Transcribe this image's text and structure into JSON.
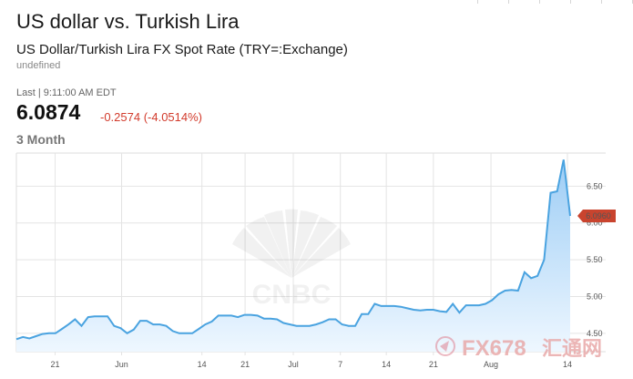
{
  "header": {
    "title": "US dollar vs. Turkish Lira",
    "subtitle": "US Dollar/Turkish Lira FX Spot Rate (TRY=:Exchange)",
    "subtitle_note": "undefined",
    "last_label": "Last | 9:11:00 AM EDT",
    "price": "6.0874",
    "change": "-0.2574 (-4.0514%)",
    "range": "3 Month"
  },
  "watermarks": {
    "brand": "CNBC",
    "fx_text": "FX678",
    "fx_cn": "汇通网"
  },
  "colors": {
    "line": "#4aa3e0",
    "fill_top": "#9dcdf5",
    "fill_bottom": "#eef7ff",
    "change_negative": "#d23b2c",
    "badge": "#c9442e",
    "grid": "#e4e4e4"
  },
  "chart_data": {
    "type": "area",
    "title": "",
    "xlabel": "",
    "ylabel": "",
    "ylim": [
      4.25,
      6.95
    ],
    "y_ticks": [
      "6.50",
      "6.00",
      "5.50",
      "5.00",
      "4.50"
    ],
    "y_tick_values": [
      6.5,
      6.0,
      5.5,
      5.0,
      4.5
    ],
    "x_ticks": [
      "21",
      "Jun",
      "14",
      "21",
      "Jul",
      "7",
      "14",
      "21",
      "Aug",
      "14"
    ],
    "current_label": "6.0960",
    "current_value": 6.096,
    "grid": true,
    "series": [
      {
        "values": [
          4.42,
          4.45,
          4.43,
          4.46,
          4.49,
          4.5,
          4.5,
          4.56,
          4.62,
          4.69,
          4.6,
          4.72,
          4.73,
          4.73,
          4.73,
          4.6,
          4.57,
          4.5,
          4.55,
          4.67,
          4.67,
          4.62,
          4.62,
          4.6,
          4.53,
          4.5,
          4.5,
          4.5,
          4.56,
          4.62,
          4.66,
          4.74,
          4.74,
          4.74,
          4.72,
          4.75,
          4.75,
          4.74,
          4.7,
          4.7,
          4.69,
          4.64,
          4.62,
          4.6,
          4.6,
          4.6,
          4.62,
          4.65,
          4.69,
          4.69,
          4.62,
          4.6,
          4.6,
          4.76,
          4.76,
          4.9,
          4.87,
          4.87,
          4.87,
          4.86,
          4.84,
          4.82,
          4.81,
          4.82,
          4.82,
          4.8,
          4.79,
          4.9,
          4.78,
          4.88,
          4.88,
          4.88,
          4.9,
          4.95,
          5.03,
          5.08,
          5.09,
          5.08,
          5.33,
          5.25,
          5.28,
          5.5,
          6.41,
          6.43,
          6.86,
          6.096
        ]
      }
    ]
  }
}
